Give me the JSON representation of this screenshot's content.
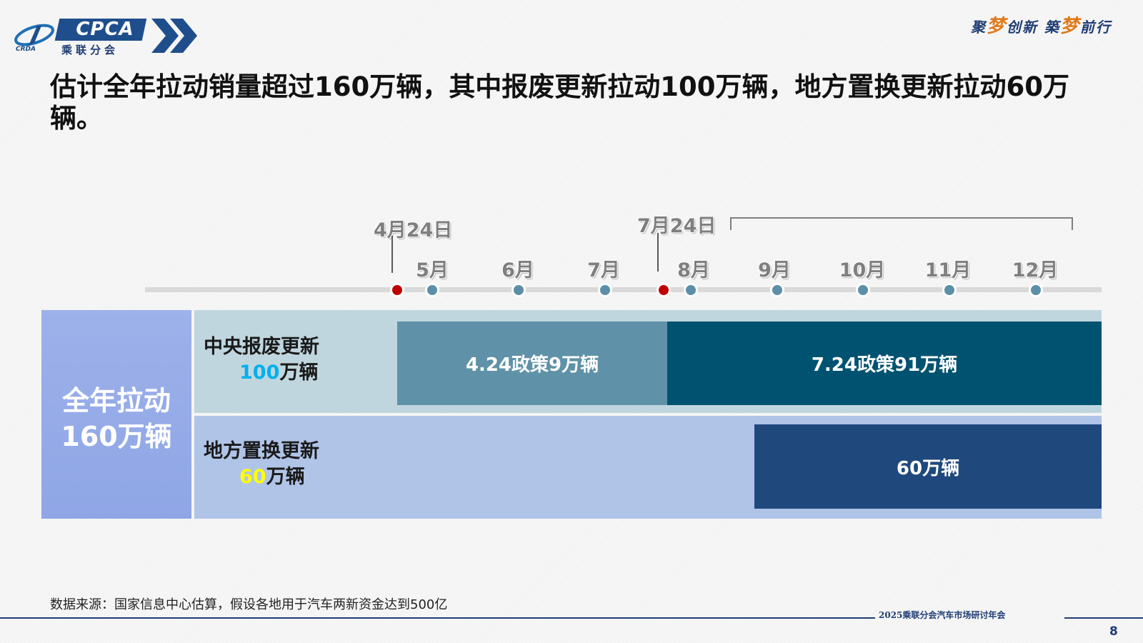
{
  "logo": {
    "brand": "CPCA",
    "name_cn": "乘联分会",
    "small_text": "CRDA"
  },
  "slogan": {
    "part1": "聚",
    "dream1": "梦",
    "part2": "创新 築",
    "dream2": "梦",
    "part3": "前行"
  },
  "title": "估计全年拉动销量超过160万辆，其中报废更新拉动100万辆，地方置换更新拉动60万辆。",
  "timeline": {
    "months": [
      "5月",
      "6月",
      "7月",
      "8月",
      "9月",
      "10月",
      "11月",
      "12月"
    ],
    "key_dates": [
      "4月24日",
      "7月24日"
    ],
    "colors": {
      "month_dot": "#5b8fa8",
      "policy_dot": "#c00000"
    }
  },
  "total": {
    "line1": "全年拉动",
    "line2": "160万辆"
  },
  "rows": [
    {
      "label_line1": "中央报废更新",
      "label_num": "100",
      "label_unit": "万辆",
      "highlight_color": "#00b0f0",
      "segments": [
        {
          "text": "4.24政策9万辆",
          "color": "#5f92a8"
        },
        {
          "text": "7.24政策91万辆",
          "color": "#005271"
        }
      ]
    },
    {
      "label_line1": "地方置换更新",
      "label_num": "60",
      "label_unit": "万辆",
      "highlight_color": "#ffff00",
      "segments": [
        {
          "text": "60万辆",
          "color": "#1f497d"
        }
      ]
    }
  ],
  "source": "数据来源：国家信息中心估算，假设各地用于汽车两新资金达到500亿",
  "footer": {
    "event": "2025乘联分会汽车市场研讨年会",
    "page": "8"
  }
}
